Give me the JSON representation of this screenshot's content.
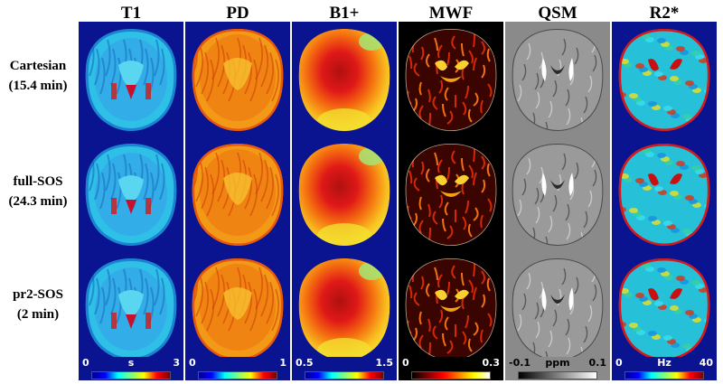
{
  "columns": [
    "T1",
    "PD",
    "B1+",
    "MWF",
    "QSM",
    "R2*"
  ],
  "rows": [
    {
      "line1": "Cartesian",
      "line2": "(15.4 min)"
    },
    {
      "line1": "full-SOS",
      "line2": "(24.3 min)"
    },
    {
      "line1": "pr2-SOS",
      "line2": "(2 min)"
    }
  ],
  "colorbars": [
    {
      "min": "0",
      "unit": "s",
      "max": "3",
      "colormap": "jet"
    },
    {
      "min": "0",
      "unit": "",
      "max": "1",
      "colormap": "jet"
    },
    {
      "min": "0.5",
      "unit": "",
      "max": "1.5",
      "colormap": "jet"
    },
    {
      "min": "0",
      "unit": "",
      "max": "0.3",
      "colormap": "hot"
    },
    {
      "min": "-0.1",
      "unit": "ppm",
      "max": "0.1",
      "colormap": "gray"
    },
    {
      "min": "0",
      "unit": "Hz",
      "max": "40",
      "colormap": "jet"
    }
  ],
  "colors": {
    "blue_bg": "#0a1490",
    "black_bg": "#000000",
    "gray_bg": "#8a8a8a"
  }
}
